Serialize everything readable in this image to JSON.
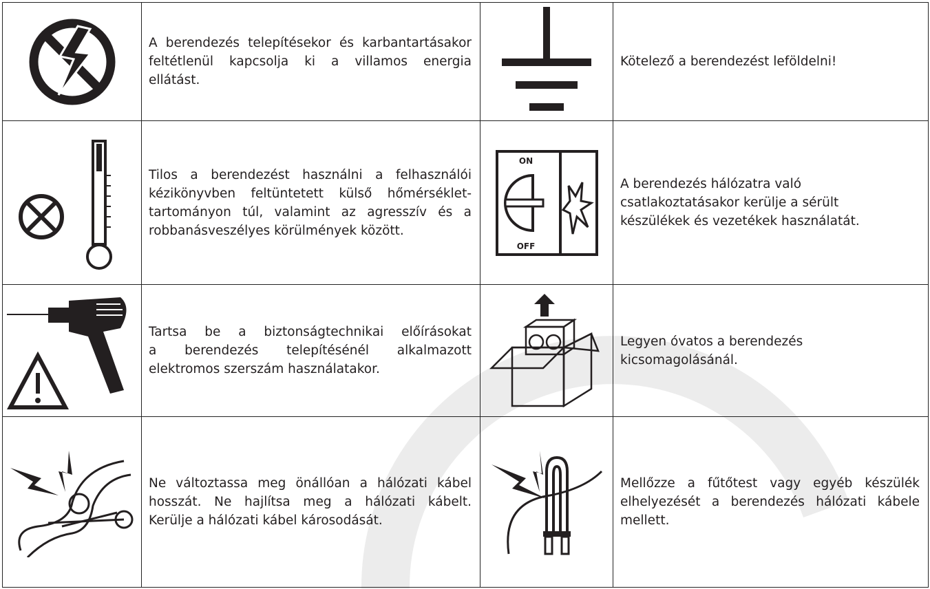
{
  "table": {
    "rows": [
      {
        "left": {
          "lines": [
            "A berendezés telepítésekor és karbantartásakor",
            "feltétlenül kapcsolja ki a villamos energia",
            "ellátást."
          ]
        },
        "right": {
          "lines": [
            "Kötelező a berendezést leföldelni!"
          ]
        }
      },
      {
        "left": {
          "lines": [
            "Tilos a berendezést használni a felhasználói",
            "kézikönyvben feltüntetett külső hőmérséklet-",
            "tartományon túl, valamint az agresszív és a",
            "robbanásveszélyes körülmények között."
          ]
        },
        "right": {
          "icon_labels": {
            "top": "ON",
            "bottom": "OFF"
          },
          "lines": [
            "A berendezés hálózatra való",
            "csatlakoztatásakor kerülje a sérült",
            "készülékek és vezetékek használatát."
          ]
        }
      },
      {
        "left": {
          "lines": [
            "Tartsa be a biztonságtechnikai előírásokat",
            "a berendezés telepítésénél alkalmazott",
            "elektromos szerszám használatakor."
          ]
        },
        "right": {
          "lines": [
            "Legyen óvatos a berendezés",
            "kicsomagolásánál."
          ]
        }
      },
      {
        "left": {
          "lines": [
            "Ne változtassa meg önállóan a hálózati kábel",
            "hosszát. Ne hajlítsa meg a hálózati kábelt.",
            "Kerülje a hálózati kábel károsodását."
          ]
        },
        "right": {
          "lines": [
            "Mellőzze a fűtőtest vagy egyéb készülék",
            "elhelyezését a berendezés hálózati kábele",
            "mellett."
          ]
        }
      }
    ]
  }
}
